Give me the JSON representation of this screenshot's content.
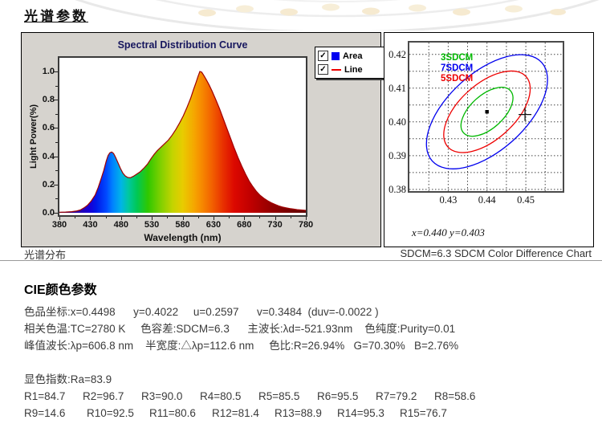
{
  "header": {
    "title": "光谱参数"
  },
  "spectral_panel": {
    "title": "Spectral Distribution Curve",
    "xlabel": "Wavelength  (nm)",
    "ylabel": "Light Power(%)",
    "caption": "光谱分布",
    "legend": [
      {
        "label": "Area",
        "swatch": "square",
        "color": "#0000f0",
        "checked": true
      },
      {
        "label": "Line",
        "swatch": "dash",
        "color": "#ee0000",
        "checked": true
      }
    ]
  },
  "sdcm_panel": {
    "caption": "SDCM=6.3  SDCM Color Difference Chart",
    "center_label": "x=0.440  y=0.403",
    "legend": [
      {
        "label": "3SDCM",
        "color": "#00b800"
      },
      {
        "label": "7SDCM",
        "color": "#0000ee"
      },
      {
        "label": "5SDCM",
        "color": "#ee0000"
      }
    ]
  },
  "cie": {
    "heading": "CIE颜色参数",
    "lines": [
      "色品坐标:x=0.4498      y=0.4022     u=0.2597      v=0.3484  (duv=-0.0022 )",
      "相关色温:TC=2780 K     色容差:SDCM=6.3      主波长:λd=-521.93nm    色纯度:Purity=0.01",
      "峰值波长:λp=606.8 nm    半宽度:△λp=112.6 nm     色比:R=26.94%   G=70.30%   B=2.76%"
    ]
  },
  "cri": {
    "summary": "显色指数:Ra=83.9",
    "rows": [
      [
        "R1=84.7",
        "R2=96.7",
        "R3=90.0",
        "R4=80.5",
        "R5=85.5",
        "R6=95.5",
        "R7=79.2",
        "R8=58.6"
      ],
      [
        "R9=14.6",
        "R10=92.5",
        "R11=80.6",
        "R12=81.4",
        "R13=88.9",
        "R14=95.3",
        "R15=76.7"
      ]
    ]
  },
  "chart_data": [
    {
      "type": "area",
      "title": "Spectral Distribution Curve",
      "xlabel": "Wavelength (nm)",
      "ylabel": "Light Power(%)",
      "xlim": [
        380,
        780
      ],
      "ylim": [
        0.0,
        1.0
      ],
      "xticks": [
        380,
        430,
        480,
        530,
        580,
        630,
        680,
        730,
        780
      ],
      "yticks": [
        0.0,
        0.2,
        0.4,
        0.6,
        0.8,
        1.0
      ],
      "legend": [
        "Area",
        "Line"
      ],
      "line_color": "#a00000",
      "x": [
        380,
        390,
        400,
        408,
        414,
        420,
        426,
        432,
        438,
        443,
        448,
        452,
        456,
        459,
        462,
        465,
        468,
        471,
        475,
        479,
        483,
        487,
        491,
        495,
        500,
        505,
        511,
        517,
        523,
        529,
        534,
        539,
        545,
        551,
        557,
        563,
        569,
        575,
        581,
        587,
        593,
        598,
        602,
        605,
        608,
        611,
        614,
        618,
        623,
        628,
        634,
        640,
        646,
        652,
        658,
        664,
        670,
        676,
        682,
        688,
        694,
        700,
        706,
        712,
        718,
        724,
        730,
        736,
        742,
        748,
        754,
        760,
        766,
        772,
        780
      ],
      "y": [
        0.004,
        0.005,
        0.008,
        0.013,
        0.02,
        0.035,
        0.055,
        0.085,
        0.125,
        0.18,
        0.245,
        0.3,
        0.365,
        0.405,
        0.425,
        0.43,
        0.42,
        0.395,
        0.355,
        0.315,
        0.28,
        0.26,
        0.25,
        0.248,
        0.258,
        0.272,
        0.29,
        0.315,
        0.345,
        0.385,
        0.415,
        0.44,
        0.465,
        0.49,
        0.515,
        0.55,
        0.59,
        0.635,
        0.685,
        0.745,
        0.81,
        0.875,
        0.925,
        0.965,
        1.0,
        0.995,
        0.975,
        0.945,
        0.905,
        0.86,
        0.8,
        0.735,
        0.665,
        0.595,
        0.525,
        0.455,
        0.39,
        0.33,
        0.275,
        0.225,
        0.185,
        0.15,
        0.123,
        0.102,
        0.085,
        0.071,
        0.059,
        0.049,
        0.041,
        0.035,
        0.03,
        0.026,
        0.022,
        0.02,
        0.017
      ],
      "annotations": {
        "blue_peak": {
          "x": 462,
          "y": 0.43
        },
        "main_peak": {
          "x": 607,
          "y": 1.0
        }
      },
      "gradient": [
        {
          "at": 0.0,
          "color": "#25005e"
        },
        {
          "at": 0.075,
          "color": "#2a00a8"
        },
        {
          "at": 0.125,
          "color": "#1500d8"
        },
        {
          "at": 0.15,
          "color": "#0018e8"
        },
        {
          "at": 0.19,
          "color": "#0048ff"
        },
        {
          "at": 0.215,
          "color": "#0080ff"
        },
        {
          "at": 0.25,
          "color": "#00b4e8"
        },
        {
          "at": 0.28,
          "color": "#00c8a0"
        },
        {
          "at": 0.315,
          "color": "#00c855"
        },
        {
          "at": 0.36,
          "color": "#30c800"
        },
        {
          "at": 0.41,
          "color": "#7ed000"
        },
        {
          "at": 0.46,
          "color": "#c4d400"
        },
        {
          "at": 0.5,
          "color": "#e8cc00"
        },
        {
          "at": 0.545,
          "color": "#f5a800"
        },
        {
          "at": 0.575,
          "color": "#f78c00"
        },
        {
          "at": 0.62,
          "color": "#f26000"
        },
        {
          "at": 0.665,
          "color": "#e83000"
        },
        {
          "at": 0.71,
          "color": "#dc0800"
        },
        {
          "at": 0.775,
          "color": "#c00000"
        },
        {
          "at": 0.86,
          "color": "#940000"
        },
        {
          "at": 1.0,
          "color": "#5e0000"
        }
      ]
    },
    {
      "type": "scatter",
      "title": "SDCM Color Difference Chart",
      "sdcm_value": 6.3,
      "xlim": [
        0.42,
        0.4595
      ],
      "ylim": [
        0.3795,
        0.4235
      ],
      "xticks": [
        0.43,
        0.44,
        0.45
      ],
      "yticks": [
        0.38,
        0.39,
        0.4,
        0.41,
        0.42
      ],
      "grid_step": 0.005,
      "ellipse_center": {
        "x": 0.44,
        "y": 0.403
      },
      "ellipse_rotation_deg": 42,
      "ellipses": [
        {
          "name": "7SDCM",
          "sdcm": 7,
          "color": "#0000ee"
        },
        {
          "name": "5SDCM",
          "sdcm": 5,
          "color": "#ee0000"
        },
        {
          "name": "3SDCM",
          "sdcm": 3,
          "color": "#00b800"
        }
      ],
      "measured_point": {
        "x": 0.4498,
        "y": 0.4022
      }
    }
  ]
}
